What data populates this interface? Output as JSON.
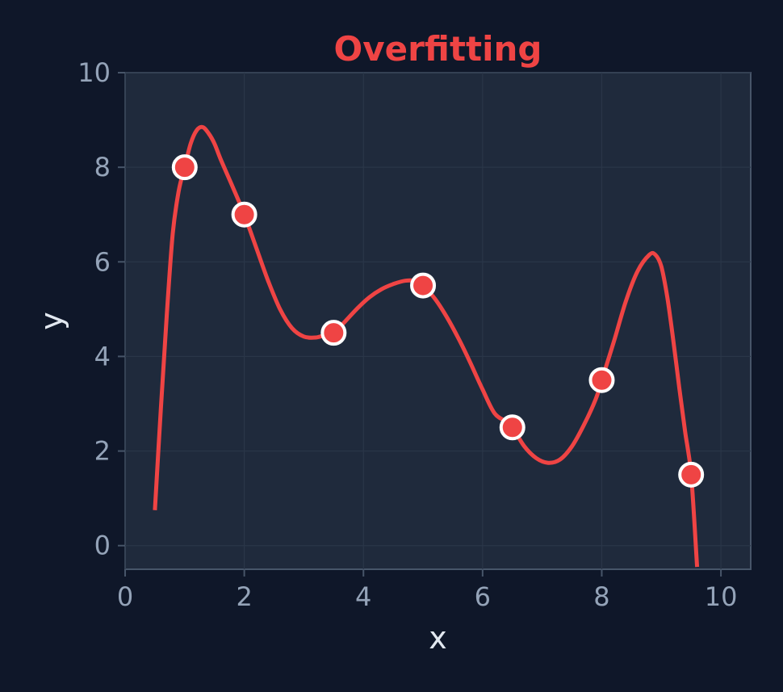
{
  "chart_data": {
    "type": "scatter",
    "title": "Overfitting",
    "xlabel": "x",
    "ylabel": "y",
    "xlim": [
      0,
      10.5
    ],
    "ylim": [
      -0.5,
      10
    ],
    "xticks": [
      "0",
      "2",
      "4",
      "6",
      "8",
      "10"
    ],
    "yticks": [
      "0",
      "2",
      "4",
      "6",
      "8",
      "10"
    ],
    "grid": true,
    "points": [
      {
        "x": 1.0,
        "y": 8.0
      },
      {
        "x": 2.0,
        "y": 7.0
      },
      {
        "x": 3.5,
        "y": 4.5
      },
      {
        "x": 5.0,
        "y": 5.5
      },
      {
        "x": 6.5,
        "y": 2.5
      },
      {
        "x": 8.0,
        "y": 3.5
      },
      {
        "x": 9.5,
        "y": 1.5
      }
    ],
    "fit_curve": {
      "x": [
        0.5,
        0.6,
        0.7,
        0.8,
        0.9,
        1.0,
        1.1,
        1.2,
        1.3,
        1.4,
        1.5,
        1.6,
        1.8,
        2.0,
        2.2,
        2.4,
        2.6,
        2.8,
        3.0,
        3.2,
        3.35,
        3.5,
        3.7,
        3.9,
        4.1,
        4.3,
        4.5,
        4.7,
        4.9,
        5.0,
        5.2,
        5.4,
        5.6,
        5.8,
        6.0,
        6.2,
        6.4,
        6.5,
        6.7,
        6.9,
        7.1,
        7.3,
        7.5,
        7.7,
        7.9,
        8.0,
        8.2,
        8.4,
        8.6,
        8.8,
        8.9,
        9.0,
        9.1,
        9.2,
        9.3,
        9.4,
        9.5,
        9.6
      ],
      "y": [
        0.75,
        2.9,
        4.9,
        6.6,
        7.5,
        8.0,
        8.5,
        8.78,
        8.85,
        8.72,
        8.5,
        8.18,
        7.6,
        7.0,
        6.3,
        5.6,
        5.0,
        4.6,
        4.42,
        4.4,
        4.45,
        4.5,
        4.75,
        5.02,
        5.25,
        5.42,
        5.53,
        5.6,
        5.59,
        5.5,
        5.22,
        4.83,
        4.37,
        3.85,
        3.3,
        2.8,
        2.62,
        2.5,
        2.1,
        1.85,
        1.75,
        1.82,
        2.1,
        2.55,
        3.1,
        3.5,
        4.3,
        5.15,
        5.8,
        6.15,
        6.15,
        5.9,
        5.25,
        4.35,
        3.35,
        2.4,
        1.5,
        -0.45
      ]
    },
    "colors": {
      "curve": "#ef4444",
      "point_fill": "#ef4444",
      "point_stroke": "#ffffff",
      "plot_bg": "#1f2a3c",
      "page_bg": "#0f1729",
      "grid": "#2a3648",
      "axis": "#475569",
      "title": "#ef4444"
    }
  }
}
